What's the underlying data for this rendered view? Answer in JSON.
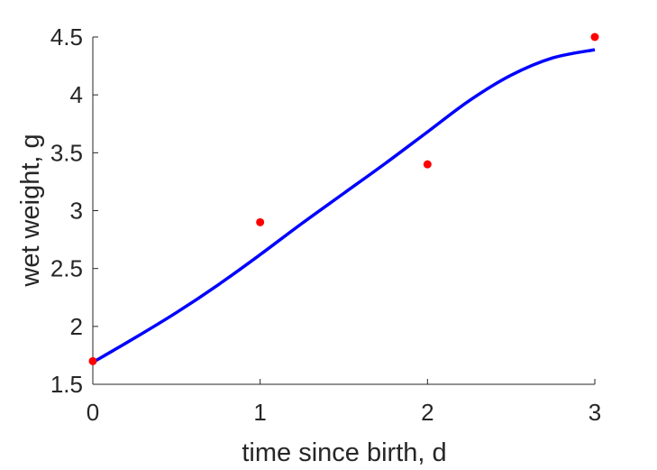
{
  "chart_data": {
    "type": "line",
    "title": "",
    "xlabel": "time since birth, d",
    "ylabel": "wet weight, g",
    "xlim": [
      0,
      3
    ],
    "ylim": [
      1.5,
      4.5
    ],
    "xticks": [
      0,
      1,
      2,
      3
    ],
    "yticks": [
      1.5,
      2,
      2.5,
      3,
      3.5,
      4,
      4.5
    ],
    "xtick_labels": [
      "0",
      "1",
      "2",
      "3"
    ],
    "ytick_labels": [
      "1.5",
      "2",
      "2.5",
      "3",
      "3.5",
      "4",
      "4.5"
    ],
    "grid": false,
    "legend": "none",
    "series": [
      {
        "kind": "points",
        "color": "#ff0000",
        "x": [
          0,
          1,
          2,
          3
        ],
        "y": [
          1.7,
          2.9,
          3.4,
          4.5
        ]
      },
      {
        "kind": "line",
        "color": "#0000ff",
        "x": [
          0,
          0.25,
          0.5,
          0.75,
          1,
          1.25,
          1.5,
          1.75,
          2,
          2.25,
          2.5,
          2.75,
          3
        ],
        "y": [
          1.69,
          1.9,
          2.12,
          2.36,
          2.62,
          2.89,
          3.15,
          3.41,
          3.68,
          3.95,
          4.17,
          4.32,
          4.39
        ]
      }
    ]
  }
}
